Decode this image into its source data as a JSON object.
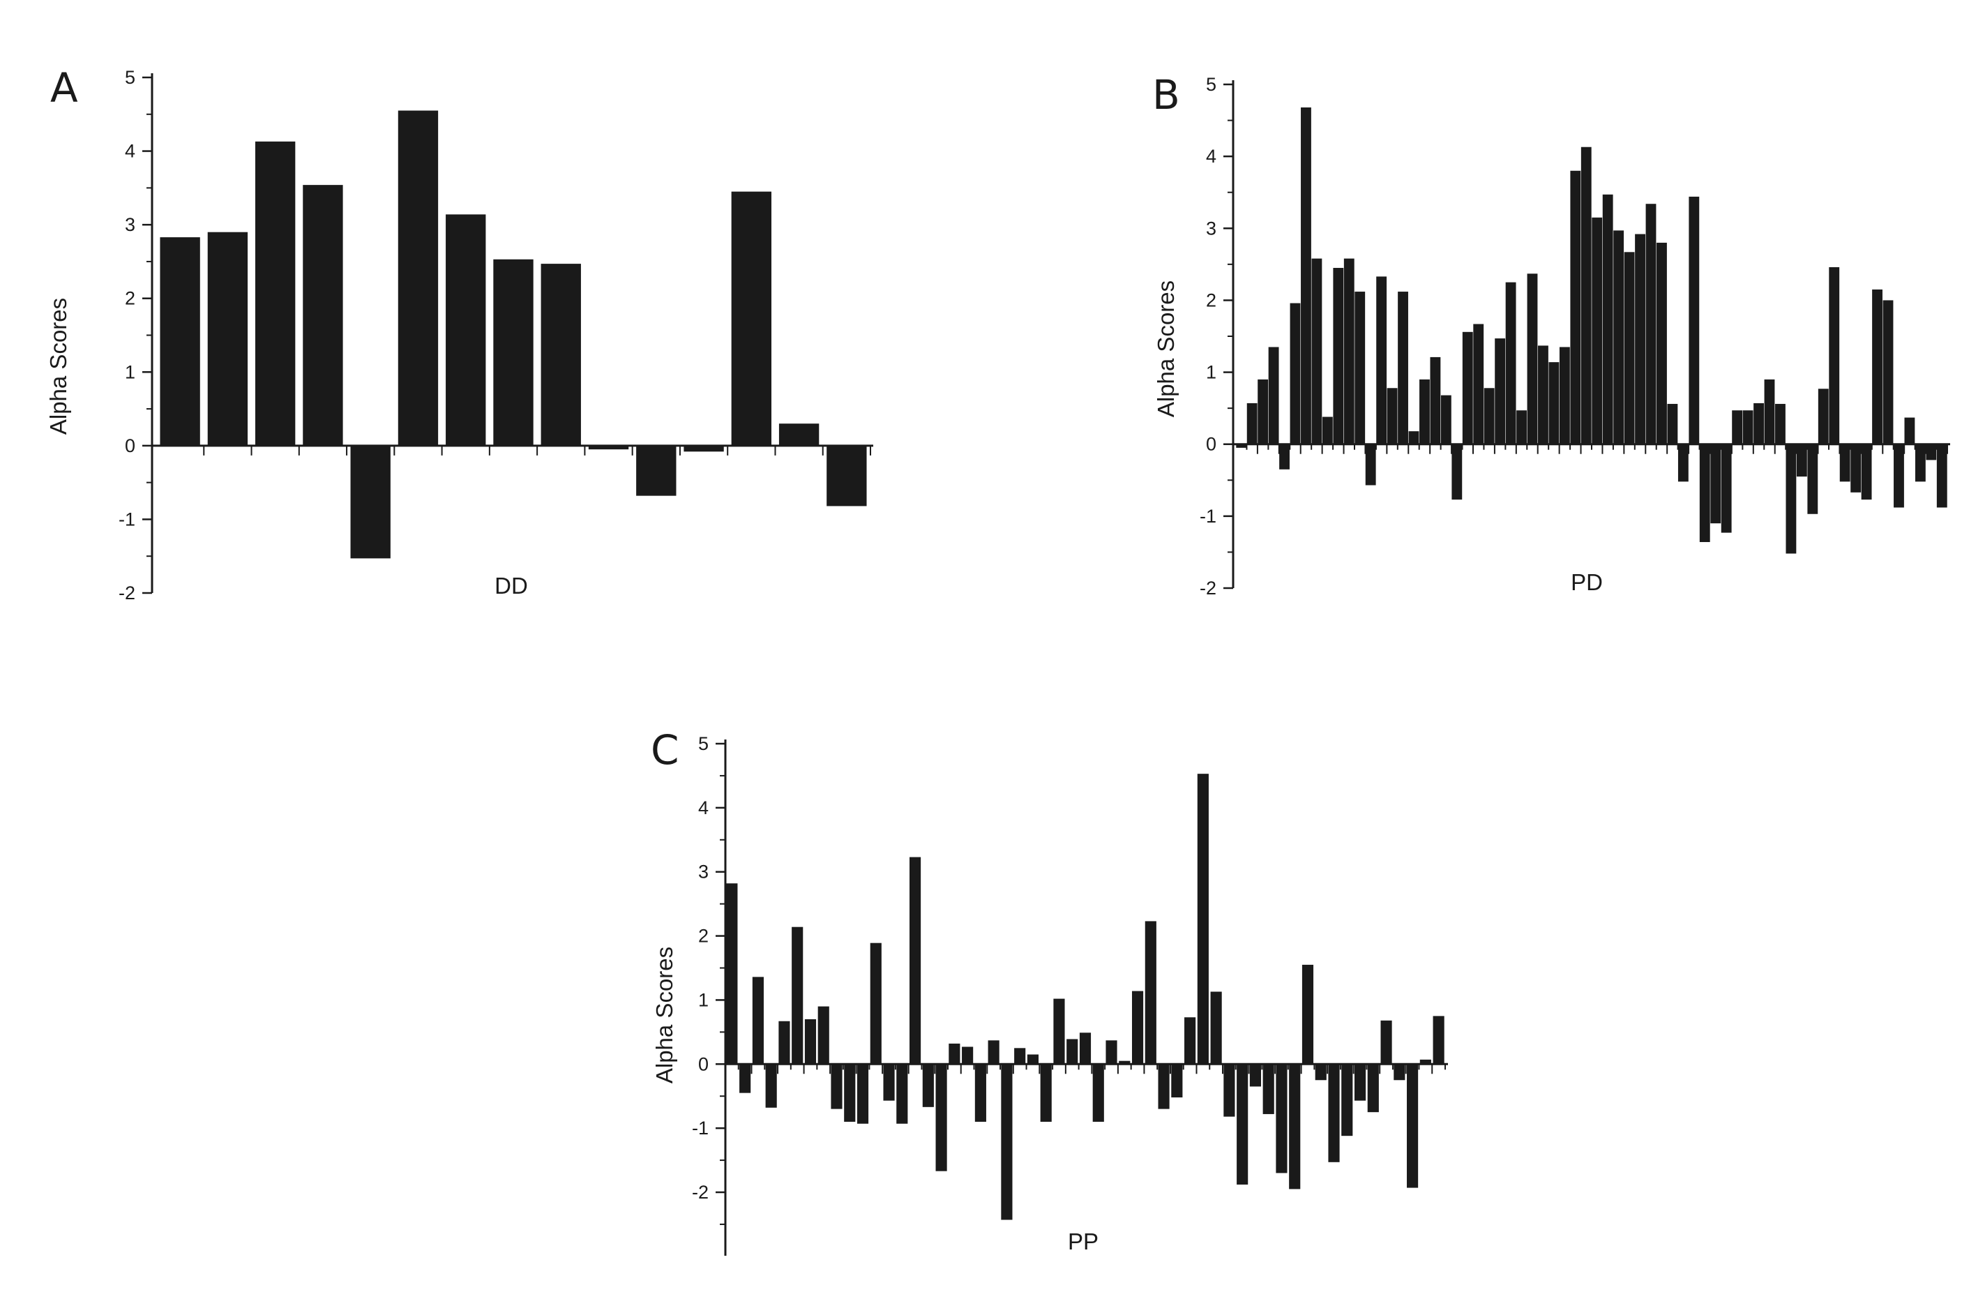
{
  "colors": {
    "bar": "#1a1a1a",
    "axis": "#1a1a1a",
    "background": "#ffffff"
  },
  "chart_data": [
    {
      "panel": "A",
      "type": "bar",
      "xlabel": "DD",
      "ylabel": "Alpha Scores",
      "ylim": [
        -2,
        5
      ],
      "yticks": [
        -2,
        -1,
        0,
        1,
        2,
        3,
        4,
        5
      ],
      "grid": false,
      "values": [
        2.83,
        2.9,
        4.13,
        3.54,
        -1.53,
        4.55,
        3.14,
        2.53,
        2.47,
        -0.05,
        -0.68,
        -0.08,
        3.45,
        0.3,
        -0.82
      ]
    },
    {
      "panel": "B",
      "type": "bar",
      "xlabel": "PD",
      "ylabel": "Alpha Scores",
      "ylim": [
        -2,
        5
      ],
      "yticks": [
        -2,
        -1,
        0,
        1,
        2,
        3,
        4,
        5
      ],
      "grid": false,
      "values": [
        -0.05,
        0.57,
        0.9,
        1.35,
        -0.35,
        1.96,
        4.68,
        2.58,
        0.38,
        2.45,
        2.58,
        2.12,
        -0.57,
        2.33,
        0.78,
        2.12,
        0.18,
        0.9,
        1.21,
        0.68,
        -0.77,
        1.56,
        1.67,
        0.78,
        1.47,
        2.25,
        0.47,
        2.37,
        1.37,
        1.14,
        1.35,
        3.8,
        4.13,
        3.15,
        3.47,
        2.97,
        2.67,
        2.92,
        3.34,
        2.8,
        0.56,
        -0.52,
        3.44,
        -1.36,
        -1.1,
        -1.23,
        0.47,
        0.47,
        0.57,
        0.9,
        0.56,
        -1.52,
        -0.45,
        -0.97,
        0.77,
        2.46,
        -0.52,
        -0.67,
        -0.77,
        2.15,
        2.0,
        -0.88,
        0.37,
        -0.52,
        -0.22,
        -0.88
      ]
    },
    {
      "panel": "C",
      "type": "bar",
      "xlabel": "PP",
      "ylabel": "Alpha Scores",
      "ylim": [
        -3,
        5
      ],
      "yticks": [
        -2,
        -1,
        0,
        1,
        2,
        3,
        4,
        5
      ],
      "grid": false,
      "values": [
        2.82,
        -0.45,
        1.36,
        -0.68,
        0.67,
        2.14,
        0.7,
        0.9,
        -0.7,
        -0.9,
        -0.93,
        1.89,
        -0.57,
        -0.93,
        3.23,
        -0.67,
        -1.67,
        0.32,
        0.27,
        -0.9,
        0.37,
        -2.43,
        0.25,
        0.15,
        -0.9,
        1.02,
        0.39,
        0.49,
        -0.9,
        0.37,
        0.05,
        1.14,
        2.23,
        -0.7,
        -0.52,
        0.73,
        4.53,
        1.13,
        -0.82,
        -1.88,
        -0.35,
        -0.78,
        -1.7,
        -1.95,
        1.55,
        -0.25,
        -1.53,
        -1.12,
        -0.57,
        -0.75,
        0.68,
        -0.25,
        -1.93,
        0.07,
        0.75
      ]
    }
  ]
}
